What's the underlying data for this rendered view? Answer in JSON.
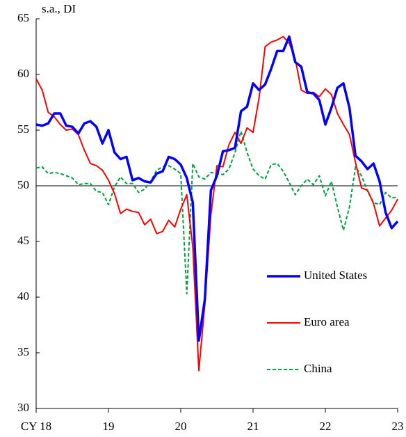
{
  "chart_data": {
    "type": "line",
    "y_label": "s.a., DI",
    "x": [
      0,
      1,
      2,
      3,
      4,
      5,
      6,
      7,
      8,
      9,
      10,
      11,
      12,
      13,
      14,
      15,
      16,
      17,
      18,
      19,
      20,
      21,
      22,
      23,
      24,
      25,
      26,
      27,
      28,
      29,
      30,
      31,
      32,
      33,
      34,
      35,
      36,
      37,
      38,
      39,
      40,
      41,
      42,
      43,
      44,
      45,
      46,
      47,
      48,
      49,
      50,
      51,
      52,
      53,
      54,
      55,
      56,
      57,
      58,
      59,
      60
    ],
    "xlim": [
      0,
      60
    ],
    "xticks": [
      {
        "value": 0,
        "label": "CY 18"
      },
      {
        "value": 12,
        "label": "19"
      },
      {
        "value": 24,
        "label": "20"
      },
      {
        "value": 36,
        "label": "21"
      },
      {
        "value": 48,
        "label": "22"
      },
      {
        "value": 60,
        "label": "23"
      }
    ],
    "ylim": [
      30,
      65
    ],
    "yticks": [
      30,
      35,
      40,
      45,
      50,
      55,
      60,
      65
    ],
    "hline": 50,
    "series": [
      {
        "name": "United States",
        "color": "#0000ff",
        "values": [
          55.5,
          55.4,
          55.6,
          56.5,
          56.5,
          55.4,
          55.3,
          54.7,
          55.6,
          55.8,
          55.3,
          53.8,
          55.0,
          53.0,
          52.4,
          52.6,
          50.5,
          50.7,
          50.4,
          50.3,
          51.1,
          51.3,
          52.6,
          52.4,
          51.9,
          50.7,
          48.5,
          36.1,
          39.8,
          49.6,
          50.9,
          53.1,
          53.2,
          53.4,
          56.7,
          57.1,
          59.2,
          58.6,
          59.1,
          60.5,
          62.1,
          62.1,
          63.4,
          61.1,
          60.7,
          58.4,
          58.3,
          57.7,
          55.5,
          57.0,
          58.8,
          59.2,
          57.0,
          52.7,
          52.2,
          51.5,
          52.0,
          50.4,
          47.6,
          46.2,
          46.8
        ]
      },
      {
        "name": "Euro area",
        "color": "#ff0000",
        "values": [
          59.6,
          58.6,
          56.6,
          56.2,
          55.5,
          55.0,
          55.1,
          54.6,
          53.2,
          52.0,
          51.8,
          51.4,
          50.5,
          49.3,
          47.5,
          47.9,
          47.7,
          47.6,
          46.5,
          47.0,
          45.7,
          45.9,
          46.9,
          46.3,
          47.9,
          49.2,
          44.5,
          33.4,
          39.4,
          47.4,
          51.8,
          51.7,
          53.7,
          54.8,
          53.8,
          55.2,
          54.8,
          57.9,
          62.5,
          62.9,
          63.1,
          63.4,
          62.8,
          61.4,
          58.6,
          58.3,
          58.4,
          58.0,
          58.7,
          58.2,
          56.5,
          55.5,
          54.6,
          52.1,
          49.8,
          49.6,
          48.4,
          46.4,
          47.1,
          47.8,
          48.8
        ]
      },
      {
        "name": "China",
        "color": "#00a040",
        "dashed": true,
        "values": [
          51.6,
          51.7,
          51.1,
          51.2,
          51.1,
          50.9,
          50.7,
          50.1,
          50.2,
          50.2,
          49.5,
          49.4,
          48.3,
          49.9,
          50.8,
          50.2,
          50.2,
          49.4,
          49.7,
          50.4,
          51.4,
          51.7,
          51.8,
          51.5,
          51.1,
          40.3,
          52.0,
          50.8,
          50.6,
          51.2,
          51.1,
          51.0,
          51.5,
          53.0,
          54.9,
          53.0,
          51.5,
          50.9,
          50.6,
          51.9,
          52.0,
          51.3,
          50.3,
          49.2,
          50.0,
          50.6,
          50.1,
          50.9,
          49.1,
          50.4,
          48.1,
          46.0,
          48.1,
          51.7,
          50.9,
          49.5,
          48.5,
          48.3,
          49.4,
          48.9,
          49.0
        ]
      }
    ]
  }
}
